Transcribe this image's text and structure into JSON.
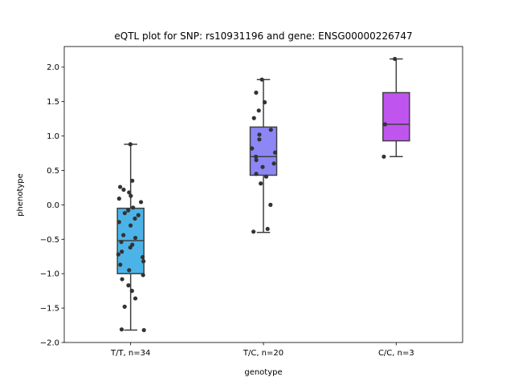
{
  "chart_data": {
    "type": "box",
    "title": "eQTL plot for SNP: rs10931196 and gene: ENSG00000226747",
    "xlabel": "genotype",
    "ylabel": "phenotype",
    "ylim": [
      -2.0,
      2.3
    ],
    "yticks": [
      "2.0",
      "1.5",
      "1.0",
      "0.5",
      "0.0",
      "−0.5",
      "−1.0",
      "−1.5",
      "−2.0"
    ],
    "ytick_values": [
      2.0,
      1.5,
      1.0,
      0.5,
      0.0,
      -0.5,
      -1.0,
      -1.5,
      -2.0
    ],
    "grid": false,
    "legend": "none",
    "categories": [
      "T/T, n=34",
      "T/C, n=20",
      "C/C, n=3"
    ],
    "colors": [
      "#4cb3e8",
      "#8c87f5",
      "#bf55ee"
    ],
    "boxes": [
      {
        "whisker_low": -1.82,
        "q1": -1.0,
        "median": -0.52,
        "q3": -0.05,
        "whisker_high": 0.88
      },
      {
        "whisker_low": -0.4,
        "q1": 0.43,
        "median": 0.7,
        "q3": 1.13,
        "whisker_high": 1.82
      },
      {
        "whisker_low": 0.7,
        "q1": 0.93,
        "median": 1.17,
        "q3": 1.63,
        "whisker_high": 2.12
      }
    ],
    "points": [
      [
        0.88,
        0.35,
        0.26,
        0.22,
        0.18,
        0.13,
        0.09,
        0.04,
        -0.04,
        -0.08,
        -0.12,
        -0.15,
        -0.2,
        -0.25,
        -0.3,
        -0.44,
        -0.48,
        -0.54,
        -0.58,
        -0.62,
        -0.68,
        -0.72,
        -0.76,
        -0.82,
        -0.87,
        -0.95,
        -1.02,
        -1.08,
        -1.17,
        -1.25,
        -1.36,
        -1.48,
        -1.81,
        -1.82
      ],
      [
        1.82,
        1.63,
        1.49,
        1.37,
        1.26,
        1.09,
        1.02,
        0.95,
        0.82,
        0.76,
        0.65,
        0.6,
        0.55,
        0.45,
        0.41,
        0.31,
        0.0,
        -0.35,
        -0.39,
        0.7
      ],
      [
        2.12,
        1.17,
        0.7
      ]
    ]
  }
}
